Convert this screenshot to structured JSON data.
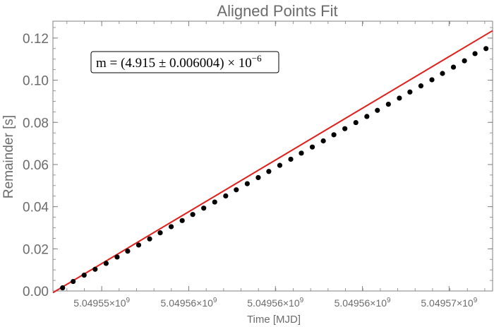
{
  "chart_data": {
    "type": "scatter",
    "title": "Aligned Points Fit",
    "xlabel": "Time [MJD]",
    "ylabel": "Remainder [s]",
    "xlim": [
      0,
      1
    ],
    "ylim": [
      0,
      0.128
    ],
    "yticks": [
      "0.00",
      "0.02",
      "0.04",
      "0.06",
      "0.08",
      "0.10",
      "0.12"
    ],
    "ytick_values": [
      0,
      0.02,
      0.04,
      0.06,
      0.08,
      0.1,
      0.12
    ],
    "xticks": [
      {
        "x": 0.111,
        "mantissa": "5.04955",
        "exp": "9"
      },
      {
        "x": 0.309,
        "mantissa": "5.04956",
        "exp": "9"
      },
      {
        "x": 0.506,
        "mantissa": "5.04956",
        "exp": "9"
      },
      {
        "x": 0.704,
        "mantissa": "5.04956",
        "exp": "9"
      },
      {
        "x": 0.901,
        "mantissa": "5.04957",
        "exp": "9"
      }
    ],
    "series": [
      {
        "x": [
          0.022,
          0.046,
          0.071,
          0.096,
          0.121,
          0.146,
          0.17,
          0.195,
          0.22,
          0.244,
          0.269,
          0.294,
          0.318,
          0.343,
          0.368,
          0.393,
          0.417,
          0.442,
          0.467,
          0.491,
          0.516,
          0.541,
          0.565,
          0.59,
          0.615,
          0.639,
          0.664,
          0.689,
          0.714,
          0.738,
          0.763,
          0.788,
          0.812,
          0.837,
          0.862,
          0.886,
          0.911,
          0.936,
          0.96,
          0.985
        ],
        "y": [
          0.0015,
          0.0045,
          0.0075,
          0.0103,
          0.0131,
          0.0161,
          0.0189,
          0.0218,
          0.0247,
          0.0276,
          0.0305,
          0.0334,
          0.0363,
          0.0393,
          0.0422,
          0.0451,
          0.048,
          0.0509,
          0.0538,
          0.0567,
          0.0596,
          0.0625,
          0.0654,
          0.0683,
          0.0712,
          0.0741,
          0.077,
          0.0799,
          0.0828,
          0.0857,
          0.0886,
          0.0915,
          0.0944,
          0.0973,
          0.1002,
          0.1032,
          0.1062,
          0.1092,
          0.1126,
          0.115
        ]
      }
    ],
    "fit_line": {
      "y_at_xmin": -0.0008,
      "y_at_xmax": 0.1235
    },
    "colors": {
      "points": "#000000",
      "fit": "#e0201b",
      "frame": "#808080"
    }
  },
  "annotation": {
    "prefix": "m = (4.915 ± 0.006004) × 10",
    "exp": "−6"
  }
}
